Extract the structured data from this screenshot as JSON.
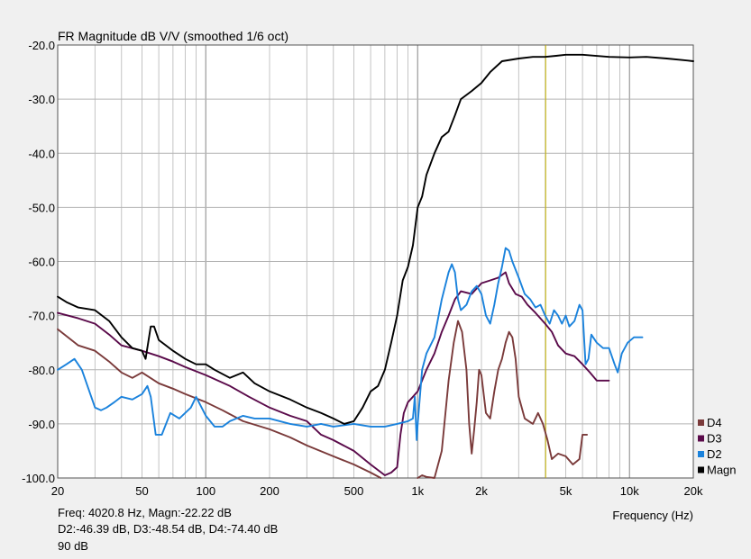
{
  "chart_data": {
    "type": "line",
    "title": "FR Magnitude dB V/V (smoothed 1/6 oct)",
    "xlabel": "Frequency (Hz)",
    "x_scale": "log",
    "xlim": [
      20,
      20000
    ],
    "ylim": [
      -100,
      -20
    ],
    "grid": true,
    "legend_placement": "bottom-right",
    "x_tick_values": [
      20,
      50,
      100,
      200,
      500,
      1000,
      2000,
      5000,
      10000,
      20000
    ],
    "x_tick_labels": [
      "20",
      "50",
      "100",
      "200",
      "500",
      "1k",
      "2k",
      "5k",
      "10k",
      "20k"
    ],
    "y_tick_values": [
      -20,
      -30,
      -40,
      -50,
      -60,
      -70,
      -80,
      -90,
      -100
    ],
    "y_tick_labels": [
      "-20.0",
      "-30.0",
      "-40.0",
      "-50.0",
      "-60.0",
      "-70.0",
      "-80.0",
      "-90.0",
      "-100.0"
    ],
    "cursor": {
      "x": 4020.8,
      "color": "#c8b400"
    },
    "series": [
      {
        "name": "D4",
        "color": "#7a3a3a",
        "segments": [
          [
            [
              20,
              -72.5
            ],
            [
              25,
              -75.5
            ],
            [
              30,
              -76.5
            ],
            [
              35,
              -78.5
            ],
            [
              40,
              -80.5
            ],
            [
              45,
              -81.5
            ],
            [
              50,
              -80.5
            ],
            [
              60,
              -82.5
            ],
            [
              70,
              -83.5
            ],
            [
              80,
              -84.5
            ],
            [
              100,
              -86
            ],
            [
              120,
              -87.5
            ],
            [
              150,
              -89.5
            ],
            [
              200,
              -91
            ],
            [
              250,
              -92.5
            ],
            [
              300,
              -94
            ],
            [
              400,
              -96
            ],
            [
              500,
              -97.5
            ],
            [
              600,
              -99
            ],
            [
              670,
              -100
            ]
          ],
          [
            [
              1000,
              -100
            ],
            [
              1050,
              -99.5
            ],
            [
              1100,
              -99.8
            ],
            [
              1200,
              -100
            ],
            [
              1300,
              -95
            ],
            [
              1400,
              -82
            ],
            [
              1480,
              -75
            ],
            [
              1550,
              -71
            ],
            [
              1620,
              -73
            ],
            [
              1700,
              -80
            ],
            [
              1750,
              -90
            ],
            [
              1800,
              -95.5
            ],
            [
              1850,
              -91
            ],
            [
              1900,
              -86
            ],
            [
              1950,
              -80
            ],
            [
              2000,
              -81
            ],
            [
              2100,
              -88
            ],
            [
              2200,
              -89
            ],
            [
              2300,
              -84
            ],
            [
              2400,
              -80
            ],
            [
              2500,
              -78
            ],
            [
              2600,
              -75
            ],
            [
              2700,
              -73
            ],
            [
              2800,
              -74
            ],
            [
              2900,
              -78
            ],
            [
              3000,
              -85
            ],
            [
              3200,
              -89
            ],
            [
              3500,
              -90
            ],
            [
              3700,
              -88
            ],
            [
              3900,
              -90
            ],
            [
              4100,
              -93
            ],
            [
              4300,
              -96.5
            ],
            [
              4600,
              -95.5
            ],
            [
              5000,
              -96
            ],
            [
              5400,
              -97.5
            ],
            [
              5800,
              -96.5
            ],
            [
              6000,
              -92
            ],
            [
              6300,
              -92
            ]
          ]
        ]
      },
      {
        "name": "D3",
        "color": "#5a0a4a",
        "segments": [
          [
            [
              20,
              -69.5
            ],
            [
              25,
              -70.5
            ],
            [
              30,
              -71.5
            ],
            [
              35,
              -73.5
            ],
            [
              40,
              -75.5
            ],
            [
              50,
              -76.5
            ],
            [
              60,
              -77.5
            ],
            [
              70,
              -78.5
            ],
            [
              80,
              -79.5
            ],
            [
              100,
              -81
            ],
            [
              130,
              -83
            ],
            [
              160,
              -85
            ],
            [
              200,
              -87
            ],
            [
              250,
              -88.5
            ],
            [
              300,
              -89.5
            ],
            [
              350,
              -92
            ],
            [
              400,
              -93
            ],
            [
              500,
              -95
            ],
            [
              600,
              -97.5
            ],
            [
              700,
              -99.5
            ],
            [
              750,
              -99
            ],
            [
              800,
              -98
            ],
            [
              830,
              -92
            ],
            [
              860,
              -88
            ],
            [
              900,
              -86
            ],
            [
              950,
              -85
            ],
            [
              1000,
              -84
            ],
            [
              1100,
              -80
            ],
            [
              1200,
              -77
            ],
            [
              1300,
              -73
            ],
            [
              1400,
              -70
            ],
            [
              1500,
              -67
            ],
            [
              1600,
              -65.5
            ],
            [
              1800,
              -66
            ],
            [
              2000,
              -64
            ],
            [
              2200,
              -63.5
            ],
            [
              2400,
              -63
            ],
            [
              2600,
              -62
            ],
            [
              2700,
              -64
            ],
            [
              2900,
              -66
            ],
            [
              3100,
              -66.5
            ],
            [
              3300,
              -68
            ],
            [
              3600,
              -69.5
            ],
            [
              4000,
              -71.5
            ],
            [
              4300,
              -73
            ],
            [
              4600,
              -75.5
            ],
            [
              5000,
              -77
            ],
            [
              5500,
              -77.5
            ],
            [
              6000,
              -79
            ],
            [
              6500,
              -80.5
            ],
            [
              7000,
              -82
            ],
            [
              7500,
              -82
            ],
            [
              8000,
              -82
            ]
          ]
        ]
      },
      {
        "name": "D2",
        "color": "#1a82dc",
        "segments": [
          [
            [
              20,
              -80
            ],
            [
              22,
              -79
            ],
            [
              24,
              -78
            ],
            [
              26,
              -80
            ],
            [
              30,
              -87
            ],
            [
              32,
              -87.5
            ],
            [
              34,
              -87
            ],
            [
              37,
              -86
            ],
            [
              40,
              -85
            ],
            [
              45,
              -85.5
            ],
            [
              50,
              -84.5
            ],
            [
              53,
              -83
            ],
            [
              55,
              -85
            ],
            [
              58,
              -92
            ],
            [
              62,
              -92
            ],
            [
              68,
              -88
            ],
            [
              75,
              -89
            ],
            [
              85,
              -87
            ],
            [
              90,
              -85
            ],
            [
              100,
              -88.5
            ],
            [
              110,
              -90.5
            ],
            [
              120,
              -90.5
            ],
            [
              130,
              -89.5
            ],
            [
              150,
              -88.5
            ],
            [
              170,
              -89
            ],
            [
              200,
              -89
            ],
            [
              250,
              -90
            ],
            [
              300,
              -90.5
            ],
            [
              350,
              -90
            ],
            [
              400,
              -90.5
            ],
            [
              500,
              -90
            ],
            [
              600,
              -90.5
            ],
            [
              700,
              -90.5
            ],
            [
              800,
              -90
            ],
            [
              900,
              -89.5
            ],
            [
              950,
              -89
            ],
            [
              970,
              -85
            ],
            [
              990,
              -93
            ],
            [
              1000,
              -90
            ],
            [
              1050,
              -80
            ],
            [
              1100,
              -77
            ],
            [
              1200,
              -74
            ],
            [
              1300,
              -67
            ],
            [
              1400,
              -62
            ],
            [
              1450,
              -60.5
            ],
            [
              1500,
              -62
            ],
            [
              1550,
              -67
            ],
            [
              1600,
              -69
            ],
            [
              1700,
              -68
            ],
            [
              1800,
              -65.5
            ],
            [
              1900,
              -64.5
            ],
            [
              2000,
              -66
            ],
            [
              2100,
              -70
            ],
            [
              2200,
              -71.5
            ],
            [
              2300,
              -68
            ],
            [
              2400,
              -64
            ],
            [
              2500,
              -61
            ],
            [
              2600,
              -57.5
            ],
            [
              2700,
              -58
            ],
            [
              2800,
              -60
            ],
            [
              3000,
              -63
            ],
            [
              3200,
              -66
            ],
            [
              3400,
              -67
            ],
            [
              3600,
              -68.5
            ],
            [
              3800,
              -68
            ],
            [
              4000,
              -70
            ],
            [
              4200,
              -71.5
            ],
            [
              4400,
              -69
            ],
            [
              4600,
              -70
            ],
            [
              4800,
              -71.5
            ],
            [
              5000,
              -70
            ],
            [
              5200,
              -72
            ],
            [
              5500,
              -71
            ],
            [
              5800,
              -68
            ],
            [
              6000,
              -69
            ],
            [
              6200,
              -79
            ],
            [
              6400,
              -78
            ],
            [
              6600,
              -73.5
            ],
            [
              7000,
              -75
            ],
            [
              7500,
              -76
            ],
            [
              8000,
              -76
            ],
            [
              8500,
              -79
            ],
            [
              8800,
              -80.5
            ],
            [
              9200,
              -77
            ],
            [
              9800,
              -75
            ],
            [
              10500,
              -74
            ],
            [
              11000,
              -74
            ],
            [
              11500,
              -74
            ]
          ]
        ]
      },
      {
        "name": "Magn",
        "color": "#000000",
        "segments": [
          [
            [
              20,
              -66.5
            ],
            [
              22,
              -67.5
            ],
            [
              25,
              -68.5
            ],
            [
              30,
              -69
            ],
            [
              35,
              -71
            ],
            [
              40,
              -74
            ],
            [
              45,
              -76
            ],
            [
              50,
              -76.5
            ],
            [
              52,
              -78
            ],
            [
              55,
              -72
            ],
            [
              57,
              -72
            ],
            [
              60,
              -74.5
            ],
            [
              70,
              -76.5
            ],
            [
              80,
              -78
            ],
            [
              90,
              -79
            ],
            [
              100,
              -79
            ],
            [
              110,
              -80
            ],
            [
              130,
              -81.5
            ],
            [
              150,
              -80.5
            ],
            [
              170,
              -82.5
            ],
            [
              200,
              -84
            ],
            [
              250,
              -85.5
            ],
            [
              300,
              -87
            ],
            [
              350,
              -88
            ],
            [
              400,
              -89
            ],
            [
              450,
              -90
            ],
            [
              500,
              -89.5
            ],
            [
              550,
              -87
            ],
            [
              600,
              -84
            ],
            [
              650,
              -83
            ],
            [
              700,
              -80
            ],
            [
              750,
              -75
            ],
            [
              800,
              -70
            ],
            [
              850,
              -63.5
            ],
            [
              900,
              -61
            ],
            [
              950,
              -57
            ],
            [
              1000,
              -50
            ],
            [
              1050,
              -48
            ],
            [
              1100,
              -44
            ],
            [
              1200,
              -40
            ],
            [
              1300,
              -37
            ],
            [
              1400,
              -36
            ],
            [
              1500,
              -33
            ],
            [
              1600,
              -30
            ],
            [
              1800,
              -28.5
            ],
            [
              2000,
              -27
            ],
            [
              2200,
              -25
            ],
            [
              2500,
              -23
            ],
            [
              3000,
              -22.5
            ],
            [
              3500,
              -22.2
            ],
            [
              4000,
              -22.2
            ],
            [
              4500,
              -22
            ],
            [
              5000,
              -21.8
            ],
            [
              6000,
              -21.8
            ],
            [
              8000,
              -22.2
            ],
            [
              10000,
              -22.3
            ],
            [
              12000,
              -22.2
            ],
            [
              15000,
              -22.5
            ],
            [
              18000,
              -22.8
            ],
            [
              20000,
              -23
            ]
          ]
        ]
      }
    ]
  },
  "readout": {
    "freq_magn": "Freq: 4020.8 Hz, Magn:-22.22 dB",
    "distortion": "D2:-46.39 dB, D3:-48.54 dB, D4:-74.40 dB",
    "level": "90 dB"
  }
}
